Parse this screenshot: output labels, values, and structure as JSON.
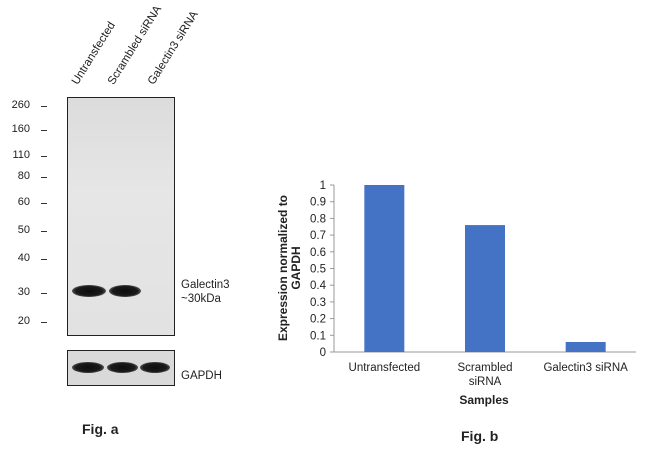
{
  "figure_a": {
    "lane_labels": [
      "Untransfected",
      "Scrambled siRNA",
      "Galectin3 siRNA"
    ],
    "mw_markers": [
      "260",
      "160",
      "110",
      "80",
      "60",
      "50",
      "40",
      "30",
      "20"
    ],
    "band_label_line1": "Galectin3",
    "band_label_line2": "~30kDa",
    "loading_label": "GAPDH",
    "caption": "Fig. a",
    "band_colors": {
      "band": "#111111",
      "membrane": "#e2e2e2"
    }
  },
  "chart_data": {
    "type": "bar",
    "categories": [
      "Untransfected",
      "Scrambled siRNA",
      "Galectin3 siRNA"
    ],
    "category_lines": [
      [
        "Untransfected"
      ],
      [
        "Scrambled",
        "siRNA"
      ],
      [
        "Galectin3 siRNA"
      ]
    ],
    "values": [
      1.0,
      0.76,
      0.06
    ],
    "xlabel": "Samples",
    "ylabel_line1": "Expression normalized to",
    "ylabel_line2": "GAPDH",
    "ylim": [
      0,
      1
    ],
    "yticks": [
      "0",
      "0.1",
      "0.2",
      "0.3",
      "0.4",
      "0.5",
      "0.6",
      "0.7",
      "0.8",
      "0.9",
      "1"
    ],
    "bar_color": "#4472c4",
    "grid": false,
    "legend": "none"
  },
  "figure_b": {
    "caption": "Fig. b"
  }
}
